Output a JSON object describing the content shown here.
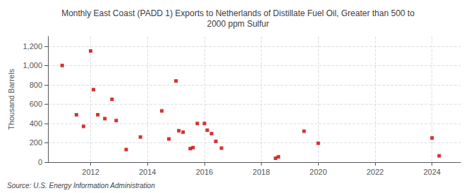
{
  "chart_data": {
    "type": "scatter",
    "title": "Monthly East Coast (PADD 1) Exports to Netherlands of Distillate Fuel Oil, Greater than 500 to\n2000 ppm Sulfur",
    "ylabel": "Thousand Barrels",
    "source": "Source: U.S. Energy Information Administration",
    "x": [
      2011.0,
      2011.5,
      2011.75,
      2012.0,
      2012.1,
      2012.25,
      2012.5,
      2012.75,
      2012.9,
      2013.25,
      2013.75,
      2014.5,
      2014.75,
      2015.0,
      2015.1,
      2015.25,
      2015.5,
      2015.6,
      2015.75,
      2016.0,
      2016.1,
      2016.25,
      2016.4,
      2016.6,
      2018.5,
      2018.6,
      2019.5,
      2020.0,
      2024.0,
      2024.25
    ],
    "values": [
      1000,
      490,
      370,
      1150,
      750,
      490,
      450,
      650,
      430,
      130,
      260,
      530,
      240,
      840,
      325,
      310,
      140,
      150,
      400,
      400,
      330,
      295,
      215,
      145,
      40,
      55,
      320,
      195,
      250,
      65
    ],
    "color": "#cc0000",
    "marker": "square",
    "xlim": [
      2010.5,
      2025.0
    ],
    "ylim": [
      0,
      1300
    ],
    "xticks": [
      2012,
      2014,
      2016,
      2018,
      2020,
      2022,
      2024
    ],
    "yticks": [
      0,
      200,
      400,
      600,
      800,
      {
        "value": 1000,
        "label": "1,000"
      },
      {
        "value": 1200,
        "label": "1,200"
      }
    ],
    "grid": true
  }
}
